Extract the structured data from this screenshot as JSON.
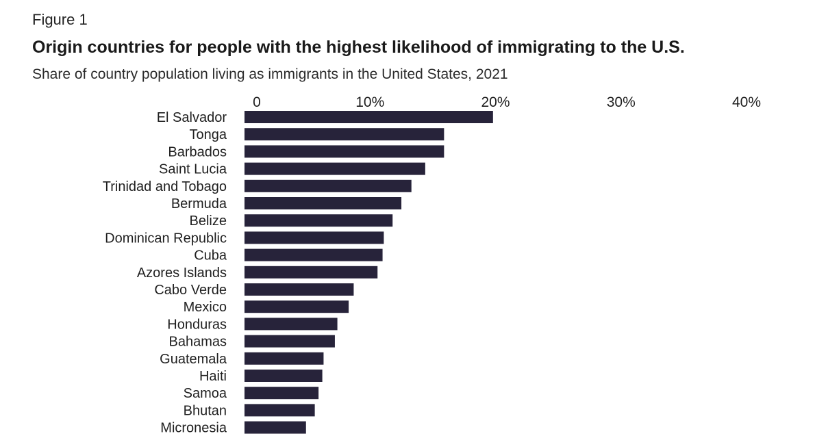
{
  "figure_label": "Figure 1",
  "chart_data": {
    "type": "bar",
    "orientation": "horizontal",
    "title": "Origin countries for people with the highest likelihood of immigrating to the U.S.",
    "subtitle": "Share of country population living as immigrants in the United States, 2021",
    "xlim": [
      0,
      40
    ],
    "x_ticks": [
      0,
      10,
      20,
      30,
      40
    ],
    "x_tick_labels": [
      "0",
      "10%",
      "20%",
      "30%",
      "40%"
    ],
    "x_axis_position": "top",
    "grid": false,
    "bar_color": "#27233a",
    "categories": [
      "El Salvador",
      "Tonga",
      "Barbados",
      "Saint Lucia",
      "Trinidad and Tobago",
      "Bermuda",
      "Belize",
      "Dominican Republic",
      "Cuba",
      "Azores Islands",
      "Cabo Verde",
      "Mexico",
      "Honduras",
      "Bahamas",
      "Guatemala",
      "Haiti",
      "Samoa",
      "Bhutan",
      "Micronesia"
    ],
    "values": [
      19.8,
      15.9,
      15.9,
      14.4,
      13.3,
      12.5,
      11.8,
      11.1,
      11.0,
      10.6,
      8.7,
      8.3,
      7.4,
      7.2,
      6.3,
      6.2,
      5.9,
      5.6,
      4.9
    ]
  }
}
